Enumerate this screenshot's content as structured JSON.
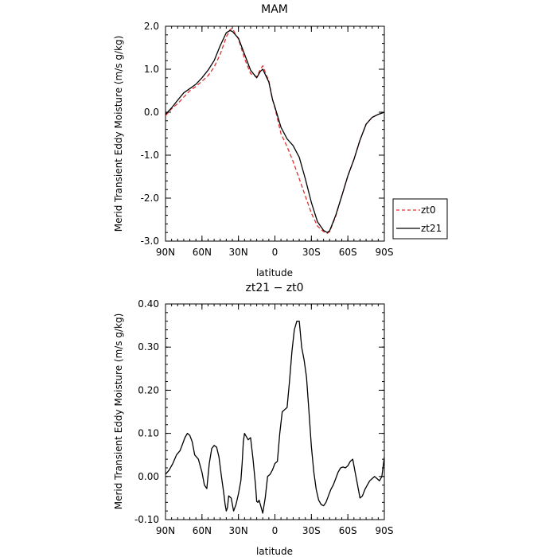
{
  "chart_data": [
    {
      "type": "line",
      "title": "MAM",
      "xlabel": "latitude",
      "ylabel": "Merid Transient Eddy Moisture (m/s g/kg)",
      "xlim": [
        -90,
        90
      ],
      "ylim": [
        -3.0,
        2.0
      ],
      "x_ticks": [
        -90,
        -60,
        -30,
        0,
        30,
        60,
        90
      ],
      "x_tick_labels": [
        "90N",
        "60N",
        "30N",
        "0",
        "30S",
        "60S",
        "90S"
      ],
      "y_ticks": [
        2.0,
        1.0,
        0.0,
        -1.0,
        -2.0,
        -3.0
      ],
      "y_tick_labels": [
        "2.0",
        "1.0",
        "0.0",
        "-1.0",
        "-2.0",
        "-3.0"
      ],
      "grid": false,
      "legend": "right",
      "series": [
        {
          "name": "zt0",
          "color": "#e03030",
          "dash": "dashed",
          "x": [
            -90,
            -85,
            -80,
            -75,
            -70,
            -65,
            -60,
            -55,
            -50,
            -45,
            -40,
            -37,
            -35,
            -30,
            -25,
            -20,
            -15,
            -12,
            -10,
            -5,
            -2,
            0,
            5,
            10,
            15,
            20,
            25,
            30,
            35,
            40,
            43,
            45,
            50,
            55,
            60,
            65,
            70,
            75,
            80,
            85,
            90
          ],
          "y": [
            -0.08,
            0.08,
            0.2,
            0.35,
            0.5,
            0.6,
            0.72,
            0.85,
            1.05,
            1.35,
            1.75,
            1.92,
            1.95,
            1.7,
            1.25,
            0.9,
            0.82,
            1.0,
            1.08,
            0.72,
            0.3,
            0.1,
            -0.5,
            -0.8,
            -1.15,
            -1.55,
            -1.95,
            -2.35,
            -2.65,
            -2.78,
            -2.82,
            -2.78,
            -2.42,
            -1.95,
            -1.48,
            -1.1,
            -0.65,
            -0.28,
            -0.12,
            -0.05,
            0.0
          ]
        },
        {
          "name": "zt21",
          "color": "#000000",
          "dash": "solid",
          "x": [
            -90,
            -85,
            -80,
            -75,
            -70,
            -65,
            -60,
            -55,
            -50,
            -45,
            -40,
            -37,
            -35,
            -30,
            -25,
            -20,
            -15,
            -12,
            -10,
            -5,
            -2,
            0,
            5,
            10,
            15,
            20,
            25,
            30,
            35,
            40,
            43,
            45,
            50,
            55,
            60,
            65,
            70,
            75,
            80,
            85,
            90
          ],
          "y": [
            -0.05,
            0.1,
            0.28,
            0.45,
            0.55,
            0.65,
            0.8,
            0.98,
            1.2,
            1.55,
            1.85,
            1.9,
            1.88,
            1.72,
            1.35,
            0.98,
            0.8,
            0.95,
            1.0,
            0.7,
            0.3,
            0.12,
            -0.35,
            -0.62,
            -0.78,
            -1.05,
            -1.55,
            -2.1,
            -2.55,
            -2.75,
            -2.8,
            -2.76,
            -2.4,
            -1.95,
            -1.48,
            -1.1,
            -0.65,
            -0.28,
            -0.12,
            -0.05,
            0.0
          ]
        }
      ]
    },
    {
      "type": "line",
      "title": "zt21 − zt0",
      "xlabel": "latitude",
      "ylabel": "Merid Transient Eddy Moisture (m/s g/kg)",
      "xlim": [
        -90,
        90
      ],
      "ylim": [
        -0.1,
        0.4
      ],
      "x_ticks": [
        -90,
        -60,
        -30,
        0,
        30,
        60,
        90
      ],
      "x_tick_labels": [
        "90N",
        "60N",
        "30N",
        "0",
        "30S",
        "60S",
        "90S"
      ],
      "y_ticks": [
        0.4,
        0.3,
        0.2,
        0.1,
        0.0,
        -0.1
      ],
      "y_tick_labels": [
        "0.40",
        "0.30",
        "0.20",
        "0.10",
        "0.00",
        "-0.10"
      ],
      "grid": false,
      "series": [
        {
          "color": "#000000",
          "dash": "solid",
          "x": [
            -90,
            -87,
            -84,
            -81,
            -78,
            -76,
            -74,
            -72,
            -70,
            -68,
            -66,
            -63,
            -60,
            -58,
            -56,
            -54,
            -52,
            -50,
            -48,
            -46,
            -44,
            -42,
            -41,
            -40,
            -39,
            -38,
            -36,
            -34,
            -32,
            -30,
            -28,
            -27,
            -26,
            -25,
            -24,
            -22,
            -20,
            -18,
            -16,
            -15,
            -14,
            -13,
            -12,
            -11,
            -10,
            -8,
            -6,
            -4,
            -2,
            0,
            2,
            4,
            6,
            8,
            10,
            12,
            14,
            16,
            18,
            20,
            22,
            24,
            26,
            28,
            30,
            32,
            34,
            36,
            38,
            40,
            42,
            44,
            46,
            48,
            50,
            52,
            54,
            56,
            58,
            60,
            62,
            64,
            66,
            68,
            70,
            72,
            74,
            76,
            78,
            80,
            82,
            84,
            86,
            88,
            90
          ],
          "y": [
            0.005,
            0.015,
            0.03,
            0.05,
            0.06,
            0.075,
            0.09,
            0.1,
            0.095,
            0.08,
            0.05,
            0.04,
            0.01,
            -0.02,
            -0.028,
            0.03,
            0.065,
            0.072,
            0.068,
            0.045,
            0.0,
            -0.04,
            -0.065,
            -0.08,
            -0.072,
            -0.045,
            -0.05,
            -0.08,
            -0.065,
            -0.04,
            -0.01,
            0.03,
            0.08,
            0.1,
            0.095,
            0.085,
            0.09,
            0.04,
            -0.02,
            -0.058,
            -0.06,
            -0.055,
            -0.065,
            -0.075,
            -0.085,
            -0.05,
            0.0,
            0.005,
            0.015,
            0.03,
            0.035,
            0.1,
            0.15,
            0.155,
            0.16,
            0.22,
            0.29,
            0.34,
            0.36,
            0.36,
            0.3,
            0.27,
            0.23,
            0.15,
            0.07,
            0.01,
            -0.03,
            -0.055,
            -0.065,
            -0.068,
            -0.06,
            -0.045,
            -0.03,
            -0.02,
            -0.005,
            0.01,
            0.02,
            0.022,
            0.02,
            0.025,
            0.035,
            0.04,
            0.01,
            -0.02,
            -0.05,
            -0.045,
            -0.03,
            -0.02,
            -0.01,
            -0.005,
            0.0,
            -0.005,
            -0.01,
            0.0,
            0.045
          ]
        }
      ]
    }
  ]
}
